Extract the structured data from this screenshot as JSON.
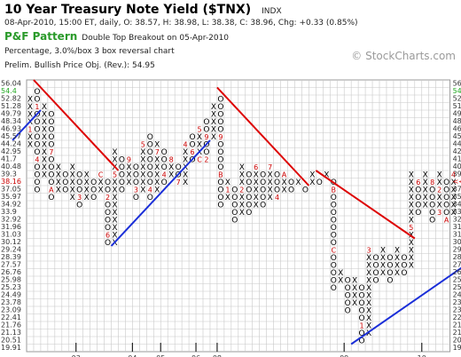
{
  "header": {
    "title": "10 Year Treasury Note Yield ($TNX)",
    "ticker_tag": "INDX",
    "quote_line": "08-Apr-2010, 15:00 ET, daily, O: 38.57, H: 38.98, L: 38.38, C: 38.96, Chg: +0.33 (0.85%)",
    "chart_type": "P&F Pattern",
    "signal": "Double Top Breakout on 05-Apr-2010",
    "box_settings": "Percentage, 3.0%/box 3 box reversal chart",
    "price_objective": "Prelim. Bullish Price Obj. (Rev.): 54.95",
    "watermark": "© StockCharts.com"
  },
  "chart_data": {
    "type": "point-and-figure",
    "box_size_percent": 3.0,
    "reversal_boxes": 3,
    "price_levels": [
      "56.04",
      "54.4",
      "52.82",
      "51.28",
      "49.79",
      "48.34",
      "46.93",
      "45.57",
      "44.24",
      "42.95",
      "41.7",
      "40.48",
      "39.3",
      "38.16",
      "37.05",
      "35.97",
      "34.92",
      "33.9",
      "32.92",
      "31.96",
      "31.03",
      "30.12",
      "29.24",
      "28.39",
      "27.57",
      "26.76",
      "25.98",
      "25.23",
      "24.49",
      "23.78",
      "23.09",
      "22.41",
      "21.76",
      "21.13",
      "20.51",
      "19.91"
    ],
    "last_price_label": {
      "left": "38.16",
      "right": "<<38.96",
      "level_index": 13
    },
    "top_right_label": {
      "text": "54.4 PO",
      "level_index": 1
    },
    "x_axis_labels": [
      {
        "text": "03",
        "column": 7
      },
      {
        "text": "04",
        "column": 15
      },
      {
        "text": "05",
        "column": 19
      },
      {
        "text": "06",
        "column": 24
      },
      {
        "text": "08",
        "column": 27
      },
      {
        "text": "09",
        "column": 45
      },
      {
        "text": "10",
        "column": 56
      }
    ],
    "columns": [
      {
        "kind": "X",
        "from": 8,
        "to": 2,
        "marks": [
          {
            "index": 6,
            "text": "1"
          }
        ]
      },
      {
        "kind": "O",
        "from": 1,
        "to": 14,
        "marks": [
          {
            "index": 3,
            "text": "1"
          },
          {
            "index": 10,
            "text": "4"
          }
        ]
      },
      {
        "kind": "X",
        "from": 12,
        "to": 3,
        "marks": []
      },
      {
        "kind": "O",
        "from": 4,
        "to": 15,
        "marks": [
          {
            "index": 9,
            "text": "7"
          },
          {
            "index": 14,
            "text": "A"
          }
        ]
      },
      {
        "kind": "X",
        "from": 14,
        "to": 11,
        "marks": []
      },
      {
        "kind": "O",
        "from": 12,
        "to": 14,
        "marks": []
      },
      {
        "kind": "X",
        "from": 15,
        "to": 11,
        "marks": []
      },
      {
        "kind": "O",
        "from": 12,
        "to": 16,
        "marks": [
          {
            "index": 15,
            "text": "3"
          }
        ]
      },
      {
        "kind": "X",
        "from": 15,
        "to": 12,
        "marks": []
      },
      {
        "kind": "O",
        "from": 13,
        "to": 15,
        "marks": []
      },
      {
        "kind": "X",
        "from": 14,
        "to": 12,
        "marks": [
          {
            "index": 12,
            "text": "C"
          }
        ]
      },
      {
        "kind": "O",
        "from": 13,
        "to": 21,
        "marks": [
          {
            "index": 15,
            "text": "2"
          },
          {
            "index": 20,
            "text": "6"
          }
        ]
      },
      {
        "kind": "X",
        "from": 21,
        "to": 9,
        "marks": [
          {
            "index": 12,
            "text": "5"
          }
        ]
      },
      {
        "kind": "O",
        "from": 10,
        "to": 14,
        "marks": []
      },
      {
        "kind": "X",
        "from": 13,
        "to": 10,
        "marks": [
          {
            "index": 10,
            "text": "9"
          }
        ]
      },
      {
        "kind": "O",
        "from": 11,
        "to": 15,
        "marks": [
          {
            "index": 14,
            "text": "3"
          }
        ]
      },
      {
        "kind": "X",
        "from": 14,
        "to": 8,
        "marks": [
          {
            "index": 8,
            "text": "5"
          }
        ]
      },
      {
        "kind": "O",
        "from": 7,
        "to": 15,
        "marks": [
          {
            "index": 14,
            "text": "4"
          }
        ]
      },
      {
        "kind": "X",
        "from": 14,
        "to": 8,
        "marks": [
          {
            "index": 9,
            "text": "7"
          }
        ]
      },
      {
        "kind": "O",
        "from": 9,
        "to": 13,
        "marks": [
          {
            "index": 12,
            "text": "4"
          }
        ]
      },
      {
        "kind": "X",
        "from": 12,
        "to": 10,
        "marks": [
          {
            "index": 10,
            "text": "8"
          }
        ]
      },
      {
        "kind": "O",
        "from": 11,
        "to": 13,
        "marks": [
          {
            "index": 13,
            "text": "7"
          }
        ]
      },
      {
        "kind": "X",
        "from": 13,
        "to": 8,
        "marks": [
          {
            "index": 8,
            "text": "4"
          }
        ]
      },
      {
        "kind": "O",
        "from": 7,
        "to": 10,
        "marks": [
          {
            "index": 9,
            "text": "6"
          }
        ]
      },
      {
        "kind": "X",
        "from": 10,
        "to": 6,
        "marks": [
          {
            "index": 6,
            "text": "5"
          },
          {
            "index": 10,
            "text": "C"
          }
        ]
      },
      {
        "kind": "O",
        "from": 5,
        "to": 10,
        "marks": [
          {
            "index": 7,
            "text": "9"
          },
          {
            "index": 10,
            "text": "2"
          }
        ]
      },
      {
        "kind": "X",
        "from": 7,
        "to": 3,
        "marks": []
      },
      {
        "kind": "O",
        "from": 2,
        "to": 16,
        "marks": [
          {
            "index": 7,
            "text": "9"
          },
          {
            "index": 12,
            "text": "B"
          }
        ]
      },
      {
        "kind": "X",
        "from": 15,
        "to": 13,
        "marks": [
          {
            "index": 14,
            "text": "1"
          }
        ]
      },
      {
        "kind": "O",
        "from": 14,
        "to": 18,
        "marks": []
      },
      {
        "kind": "X",
        "from": 17,
        "to": 11,
        "marks": [
          {
            "index": 14,
            "text": "2"
          }
        ]
      },
      {
        "kind": "O",
        "from": 12,
        "to": 17,
        "marks": []
      },
      {
        "kind": "X",
        "from": 16,
        "to": 11,
        "marks": [
          {
            "index": 11,
            "text": "6"
          }
        ]
      },
      {
        "kind": "O",
        "from": 12,
        "to": 16,
        "marks": []
      },
      {
        "kind": "X",
        "from": 15,
        "to": 11,
        "marks": [
          {
            "index": 11,
            "text": "7"
          }
        ]
      },
      {
        "kind": "O",
        "from": 12,
        "to": 15,
        "marks": [
          {
            "index": 15,
            "text": "4"
          }
        ]
      },
      {
        "kind": "X",
        "from": 14,
        "to": 12,
        "marks": [
          {
            "index": 12,
            "text": "A"
          }
        ]
      },
      {
        "kind": "O",
        "from": 13,
        "to": 14,
        "marks": []
      },
      {
        "kind": "X",
        "from": 13,
        "to": 13,
        "marks": []
      },
      {
        "kind": "O",
        "from": 14,
        "to": 14,
        "marks": []
      },
      {
        "kind": "X",
        "from": 13,
        "to": 12,
        "marks": []
      },
      {
        "kind": "O",
        "from": 13,
        "to": 13,
        "marks": []
      },
      {
        "kind": "X",
        "from": 12,
        "to": 12,
        "marks": []
      },
      {
        "kind": "O",
        "from": 13,
        "to": 27,
        "marks": [
          {
            "index": 14,
            "text": "B"
          },
          {
            "index": 22,
            "text": "C"
          }
        ]
      },
      {
        "kind": "X",
        "from": 26,
        "to": 25,
        "marks": []
      },
      {
        "kind": "O",
        "from": 26,
        "to": 30,
        "marks": []
      },
      {
        "kind": "X",
        "from": 29,
        "to": 26,
        "marks": []
      },
      {
        "kind": "O",
        "from": 27,
        "to": 34,
        "marks": [
          {
            "index": 32,
            "text": "1"
          }
        ]
      },
      {
        "kind": "X",
        "from": 33,
        "to": 22,
        "marks": [
          {
            "index": 22,
            "text": "3"
          }
        ]
      },
      {
        "kind": "O",
        "from": 23,
        "to": 26,
        "marks": []
      },
      {
        "kind": "X",
        "from": 25,
        "to": 22,
        "marks": []
      },
      {
        "kind": "O",
        "from": 23,
        "to": 26,
        "marks": []
      },
      {
        "kind": "X",
        "from": 25,
        "to": 22,
        "marks": []
      },
      {
        "kind": "O",
        "from": 23,
        "to": 25,
        "marks": []
      },
      {
        "kind": "X",
        "from": 24,
        "to": 12,
        "marks": [
          {
            "index": 19,
            "text": "5"
          }
        ]
      },
      {
        "kind": "O",
        "from": 13,
        "to": 17,
        "marks": [
          {
            "index": 13,
            "text": "6"
          }
        ]
      },
      {
        "kind": "X",
        "from": 16,
        "to": 12,
        "marks": []
      },
      {
        "kind": "O",
        "from": 13,
        "to": 18,
        "marks": [
          {
            "index": 13,
            "text": "8"
          }
        ]
      },
      {
        "kind": "X",
        "from": 17,
        "to": 12,
        "marks": [
          {
            "index": 14,
            "text": "2"
          },
          {
            "index": 17,
            "text": "3"
          }
        ]
      },
      {
        "kind": "O",
        "from": 13,
        "to": 18,
        "marks": [
          {
            "index": 18,
            "text": "A"
          }
        ]
      },
      {
        "kind": "X",
        "from": 17,
        "to": 12,
        "marks": [
          {
            "index": 12,
            "text": "4"
          }
        ]
      }
    ],
    "trendlines": [
      {
        "kind": "resistance",
        "color": "#dd0000",
        "from": {
          "column": 1,
          "level": 0
        },
        "to": {
          "column": 13,
          "level": 12
        }
      },
      {
        "kind": "support",
        "color": "#1a2ed8",
        "from": {
          "column": -2,
          "level": 8
        },
        "to": {
          "column": 2,
          "level": 4
        }
      },
      {
        "kind": "support",
        "color": "#1a2ed8",
        "from": {
          "column": 12,
          "level": 22
        },
        "to": {
          "column": 26,
          "level": 8
        }
      },
      {
        "kind": "resistance",
        "color": "#dd0000",
        "from": {
          "column": 27,
          "level": 1
        },
        "to": {
          "column": 40,
          "level": 14
        }
      },
      {
        "kind": "resistance",
        "color": "#dd0000",
        "from": {
          "column": 41,
          "level": 12
        },
        "to": {
          "column": 55,
          "level": 21
        }
      },
      {
        "kind": "support",
        "color": "#1a2ed8",
        "from": {
          "column": 46,
          "level": 35
        },
        "to": {
          "column": 63,
          "level": 24
        }
      }
    ],
    "colors": {
      "X": "#000000",
      "O": "#000000",
      "month_mark": "#cc0000",
      "price_label": "#333333",
      "last_price": "#cc0000",
      "objective": "#22aa22",
      "grid": "#c8c8c8"
    }
  }
}
